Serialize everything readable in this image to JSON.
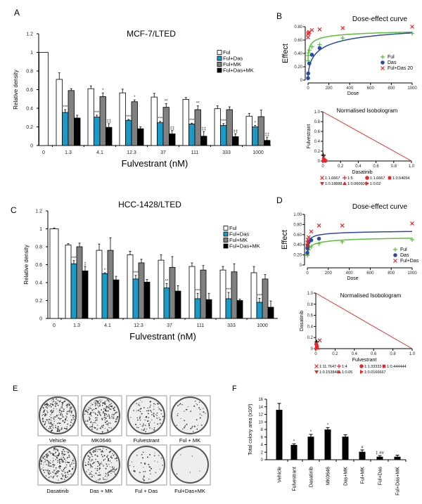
{
  "panels": {
    "A": "A",
    "B": "B",
    "C": "C",
    "D": "D",
    "E": "E",
    "F": "F"
  },
  "colors": {
    "ful": "#ffffff",
    "ful_das": "#1a9bc7",
    "ful_mk": "#808080",
    "ful_das_mk": "#000000",
    "curve_ful": "#5cbf3a",
    "curve_das": "#2a4aa8",
    "combo": "#e8262a"
  },
  "chart_data": [
    {
      "id": "A",
      "type": "bar",
      "title": "MCF-7/LTED",
      "xlabel": "Fulvestrant  (nM)",
      "ylabel": "Relative density",
      "ylim": [
        0,
        1.2
      ],
      "yticks": [
        "0",
        "0.2",
        "0.4",
        "0.6",
        "0.8",
        "1",
        "1.2"
      ],
      "categories": [
        "0",
        "1.3",
        "4.1",
        "12.3",
        "37",
        "111",
        "333",
        "1000"
      ],
      "legend": "top-right",
      "series": [
        {
          "name": "Ful",
          "values": [
            1,
            0.71,
            0.61,
            0.565,
            0.52,
            0.495,
            0.395,
            0.315
          ],
          "errors": [
            0,
            0.07,
            0.03,
            0.04,
            0.04,
            0.02,
            0.03,
            0.03
          ],
          "sig": [
            "",
            "",
            "",
            "",
            "",
            "",
            "",
            ""
          ]
        },
        {
          "name": "Ful+Das",
          "values": [
            null,
            0.355,
            0.305,
            0.27,
            0.245,
            0.23,
            0.215,
            0.2
          ],
          "errors": [
            0,
            0.03,
            0.02,
            0.01,
            0.015,
            0.01,
            0.02,
            0.015
          ],
          "sig": [
            "",
            "***",
            "***",
            "***",
            "***",
            "***",
            "***",
            "*"
          ]
        },
        {
          "name": "Ful+MK",
          "values": [
            null,
            0.59,
            0.525,
            0.47,
            0.41,
            0.385,
            0.385,
            0.31
          ],
          "errors": [
            0,
            0.02,
            0.04,
            0.02,
            0.04,
            0.04,
            0.03,
            0.07
          ],
          "sig": [
            "",
            "",
            "*",
            "*",
            "**",
            "**",
            "",
            ""
          ]
        },
        {
          "name": "Ful+Das+MK",
          "values": [
            null,
            0.295,
            0.195,
            0.18,
            0.125,
            0.1,
            0.095,
            0.055
          ],
          "errors": [
            0,
            0.03,
            0.04,
            0.02,
            0.035,
            0.05,
            0.03,
            0.035
          ],
          "sig": [
            "",
            "",
            "‡‡",
            "",
            "‡‡",
            "‡‡",
            "‡‡",
            "‡‡"
          ]
        }
      ]
    },
    {
      "id": "C",
      "type": "bar",
      "title": "HCC-1428/LTED",
      "xlabel": "Fulvestrant (nM)",
      "ylabel": "Relative density",
      "ylim": [
        0,
        1.2
      ],
      "yticks": [
        "0",
        "0.2",
        "0.4",
        "0.6",
        "0.8",
        "1",
        "1.2"
      ],
      "categories": [
        "0",
        "1.3",
        "4.1",
        "12.3",
        "37",
        "111",
        "333",
        "1000"
      ],
      "legend": "top-right",
      "series": [
        {
          "name": "Ful",
          "values": [
            1,
            0.82,
            0.76,
            0.71,
            0.65,
            0.58,
            0.54,
            0.51
          ],
          "errors": [
            0.01,
            0.015,
            0.07,
            0.04,
            0.06,
            0.04,
            0.04,
            0.07
          ],
          "sig": [
            "",
            "",
            "",
            "",
            "",
            "",
            "",
            ""
          ]
        },
        {
          "name": "Ful+Das",
          "values": [
            null,
            0.61,
            0.5,
            0.44,
            0.34,
            0.22,
            0.22,
            0.18
          ],
          "errors": [
            0,
            0.035,
            0.01,
            0.04,
            0.05,
            0.06,
            0.07,
            0.045
          ],
          "sig": [
            "",
            "***",
            "*",
            "***",
            "**",
            "***",
            "***",
            "***"
          ]
        },
        {
          "name": "Ful+MK",
          "values": [
            null,
            0.8,
            0.76,
            0.62,
            0.57,
            0.54,
            0.52,
            0.44
          ],
          "errors": [
            0,
            0.04,
            0.14,
            0.04,
            0.12,
            0.05,
            0.09,
            0.05
          ],
          "sig": [
            "",
            "",
            "",
            "",
            "",
            "",
            "",
            ""
          ]
        },
        {
          "name": "Ful+Das+MK",
          "values": [
            null,
            0.53,
            0.43,
            0.405,
            0.305,
            0.21,
            0.2,
            0.125
          ],
          "errors": [
            0,
            0.05,
            0.04,
            0.03,
            0.06,
            0.07,
            0.015,
            0.07
          ],
          "sig": [
            "",
            "‡",
            "",
            "",
            "",
            "",
            "",
            ""
          ]
        }
      ]
    },
    {
      "id": "B-dose",
      "type": "scatter",
      "title": "Dose-effect curve",
      "xlabel": "Dose",
      "ylabel": "Effect",
      "xlim": [
        0,
        1000
      ],
      "ylim": [
        0,
        0.8
      ],
      "xticks": [
        "0",
        "200",
        "400",
        "600",
        "800",
        "1000"
      ],
      "yticks": [
        "0",
        "0.20",
        "0.40",
        "0.60",
        "0.80"
      ],
      "legend": "right",
      "series": [
        {
          "name": "Ful",
          "marker": "plus",
          "x": [
            0,
            1.3,
            4.1,
            12.3,
            37,
            111,
            333,
            1000
          ],
          "y": [
            0.29,
            0.37,
            0.41,
            0.45,
            0.5,
            0.53,
            0.63,
            0.7
          ]
        },
        {
          "name": "Das",
          "marker": "circle",
          "x": [
            0,
            1.3,
            12.3,
            37,
            111
          ],
          "y": [
            0.03,
            0.1,
            0.25,
            0.38,
            0.48
          ]
        },
        {
          "name": "Ful+Das 20",
          "marker": "x",
          "x": [
            0,
            1.3,
            4.1,
            12.3,
            37,
            111,
            333,
            1000
          ],
          "y": [
            0.64,
            0.69,
            0.71,
            0.72,
            0.75,
            0.76,
            0.78,
            0.8
          ]
        }
      ]
    },
    {
      "id": "B-iso",
      "type": "scatter",
      "title": "Normalised Isobologram",
      "xlabel": "Dasatinib",
      "ylabel": "Fulvestrant",
      "xlim": [
        0,
        1
      ],
      "ylim": [
        0,
        1
      ],
      "xticks": [
        "0",
        "0.2",
        "0.4",
        "0.6",
        "0.8",
        "1.0"
      ],
      "yticks": [
        "0",
        "0.2",
        "0.4",
        "0.6",
        "0.8",
        "1.0"
      ],
      "legend": "bottom",
      "series": [
        {
          "name": "1:1.6667",
          "marker": "x",
          "x": [
            0.01
          ],
          "y": [
            0.08
          ]
        },
        {
          "name": "1:5",
          "marker": "plus",
          "x": [
            0.005
          ],
          "y": [
            0.12
          ]
        },
        {
          "name": "1:1.6667",
          "marker": "circle",
          "x": [
            0.012
          ],
          "y": [
            0.02
          ]
        },
        {
          "name": "1:0.54054",
          "marker": "square",
          "x": [
            0.02
          ],
          "y": [
            0.01
          ]
        },
        {
          "name": "1:0.18888",
          "marker": "tri-down",
          "x": [
            0.03
          ],
          "y": [
            0.005
          ]
        },
        {
          "name": "1:0.060606",
          "marker": "tri-up",
          "x": [
            0.01
          ],
          "y": [
            0.0
          ]
        },
        {
          "name": "1:0.02",
          "marker": "tri-right",
          "x": [
            0.04
          ],
          "y": [
            0.0
          ]
        }
      ]
    },
    {
      "id": "D-dose",
      "type": "scatter",
      "title": "Dose-effect curve",
      "xlabel": "Dose",
      "ylabel": "Effect",
      "xlim": [
        0,
        1000
      ],
      "ylim": [
        0,
        1
      ],
      "xticks": [
        "0",
        "200",
        "400",
        "600",
        "800",
        "1000"
      ],
      "yticks": [
        "0",
        "0.20",
        "0.40",
        "0.60",
        "0.80",
        "1.00"
      ],
      "legend": "right",
      "series": [
        {
          "name": "Ful",
          "marker": "plus",
          "x": [
            0,
            1.3,
            12.3,
            37,
            111,
            333,
            1000
          ],
          "y": [
            0.19,
            0.2,
            0.3,
            0.36,
            0.42,
            0.46,
            0.5
          ]
        },
        {
          "name": "Das",
          "marker": "circle",
          "x": [
            0,
            1.3,
            4.1,
            12.3,
            37,
            111
          ],
          "y": [
            0.24,
            0.33,
            0.38,
            0.45,
            0.49,
            0.52
          ]
        },
        {
          "name": "Ful+Das",
          "marker": "x",
          "x": [
            0,
            1.3,
            4.1,
            12.3,
            37,
            111,
            333,
            1000
          ],
          "y": [
            0.38,
            0.44,
            0.5,
            0.55,
            0.66,
            0.78,
            0.78,
            0.82
          ]
        }
      ]
    },
    {
      "id": "D-iso",
      "type": "scatter",
      "title": "Normalised Isobologram",
      "xlabel": "Fulvestrant",
      "ylabel": "Dasatinib",
      "xlim": [
        0,
        1
      ],
      "ylim": [
        0,
        1
      ],
      "xticks": [
        "0",
        "0.2",
        "0.4",
        "0.6",
        "0.8",
        "1.0"
      ],
      "yticks": [
        "0",
        "0.2",
        "0.4",
        "0.6",
        "0.8",
        "1.0"
      ],
      "legend": "bottom",
      "series": [
        {
          "name": "1:11.7647",
          "marker": "x",
          "x": [
            0.04
          ],
          "y": [
            0.15
          ]
        },
        {
          "name": "1:4",
          "marker": "plus",
          "x": [
            0.01
          ],
          "y": [
            0.12
          ]
        },
        {
          "name": "1:1.33333",
          "marker": "circle",
          "x": [
            0.005
          ],
          "y": [
            0.08
          ]
        },
        {
          "name": "1:0.444444",
          "marker": "square",
          "x": [
            0.01
          ],
          "y": [
            0.05
          ]
        },
        {
          "name": "1:0.153846",
          "marker": "tri-down",
          "x": [
            0.015
          ],
          "y": [
            0.03
          ]
        },
        {
          "name": "1:0.05",
          "marker": "tri-up",
          "x": [
            0.02
          ],
          "y": [
            0.01
          ]
        },
        {
          "name": "1:0.0166667",
          "marker": "tri-right",
          "x": [
            0.005
          ],
          "y": [
            0.0
          ]
        }
      ]
    },
    {
      "id": "F",
      "type": "bar",
      "title": "",
      "xlabel": "",
      "ylabel": "Total colony area (x10³)",
      "ylim": [
        0,
        16
      ],
      "yticks": [
        "0",
        "2",
        "4",
        "6",
        "8",
        "10",
        "12",
        "14",
        "16"
      ],
      "categories": [
        "Vehicle",
        "Fulvestrant",
        "Dasatinib",
        "MK0646",
        "Das+MK",
        "Ful+MK",
        "Ful+Das",
        "Ful+Das+MK"
      ],
      "values": [
        13.2,
        3.9,
        6.1,
        8.0,
        6.1,
        2.1,
        0.8,
        0.8
      ],
      "errors": [
        1.7,
        0.3,
        0.6,
        0.5,
        0.5,
        0.5,
        0.3,
        0.4
      ],
      "sig": [
        "",
        "*",
        "*",
        "*",
        "",
        "#",
        "‡ ##",
        ""
      ]
    }
  ],
  "plates": {
    "labels": [
      "Vehicle",
      "MK0646",
      "Fulvestrant",
      "Ful + MK",
      "Dasatinib",
      "Das + MK",
      "Ful  + Das",
      "Ful+Das+MK"
    ]
  }
}
